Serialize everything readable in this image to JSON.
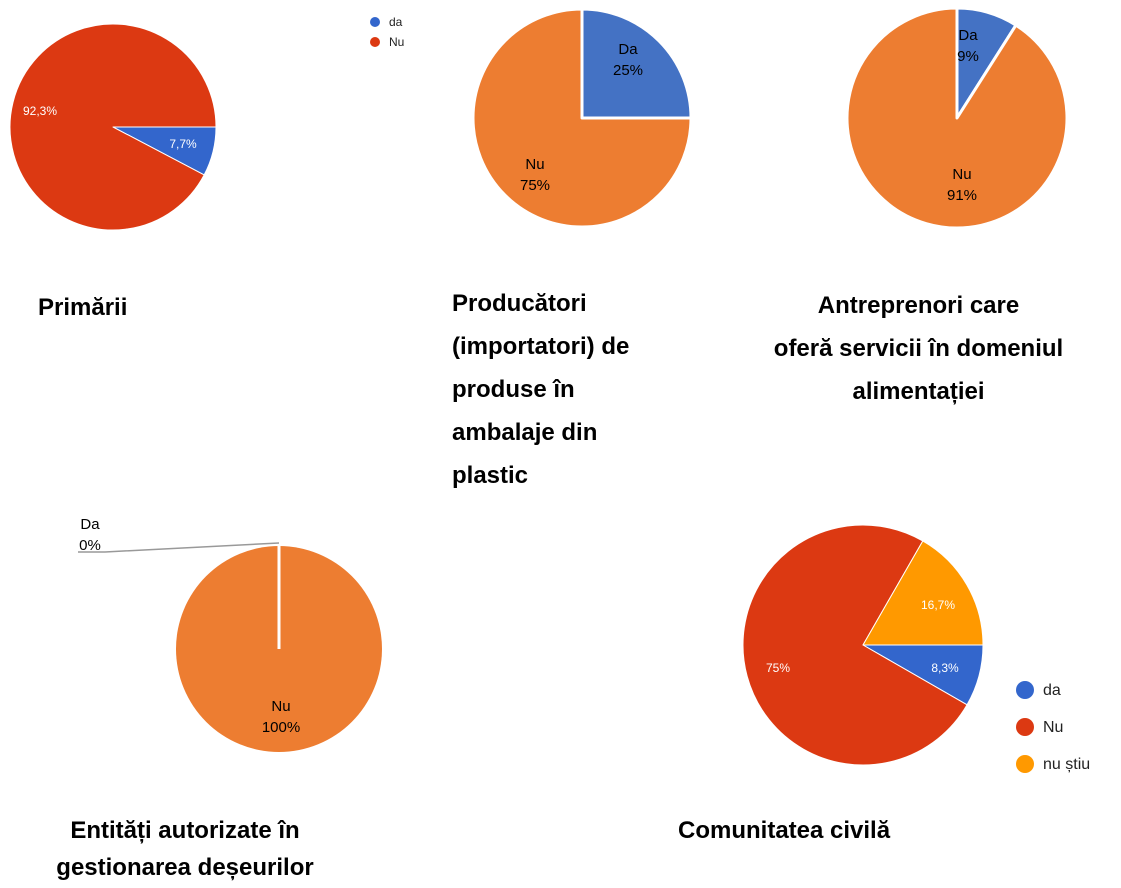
{
  "chart_data": [
    {
      "type": "pie",
      "title": "Primării",
      "categories": [
        "da",
        "Nu"
      ],
      "values": [
        7.7,
        92.3
      ],
      "value_labels": [
        "7,7%",
        "92,3%"
      ],
      "colors": [
        "#3366cc",
        "#dc3912"
      ],
      "legend": "top-right"
    },
    {
      "type": "pie",
      "title": "Producători\n(importatori) de\nproduse în\nambalaje din\nplastic",
      "categories": [
        "Da",
        "Nu"
      ],
      "values": [
        25,
        75
      ],
      "value_labels": [
        "25%",
        "75%"
      ],
      "colors": [
        "#4472c4",
        "#ed7d31"
      ]
    },
    {
      "type": "pie",
      "title": "Antreprenori care\noferă servicii în domeniul\nalimentației",
      "categories": [
        "Da",
        "Nu"
      ],
      "values": [
        9,
        91
      ],
      "value_labels": [
        "9%",
        "91%"
      ],
      "colors": [
        "#4472c4",
        "#ed7d31"
      ]
    },
    {
      "type": "pie",
      "title": "Entități autorizate în\ngestionarea deșeurilor",
      "categories": [
        "Da",
        "Nu"
      ],
      "values": [
        0,
        100
      ],
      "value_labels": [
        "0%",
        "100%"
      ],
      "colors": [
        "#4472c4",
        "#ed7d31"
      ]
    },
    {
      "type": "pie",
      "title": "Comunitatea civilă",
      "categories": [
        "da",
        "Nu",
        "nu știu"
      ],
      "values": [
        8.3,
        75,
        16.7
      ],
      "value_labels": [
        "8,3%",
        "75%",
        "16,7%"
      ],
      "colors": [
        "#3366cc",
        "#dc3912",
        "#ff9900"
      ],
      "legend": "right"
    }
  ]
}
